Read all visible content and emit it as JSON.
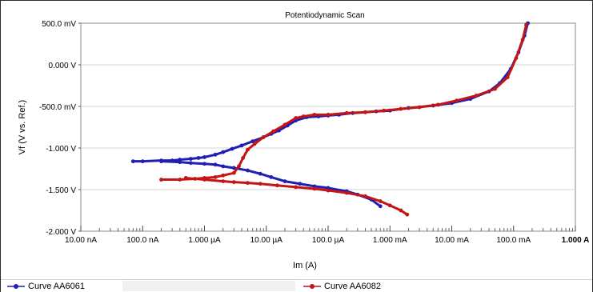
{
  "chart_data": {
    "type": "scatter",
    "title": "Potentiodynamic Scan",
    "xlabel": "Im (A)",
    "ylabel": "Vf (V vs. Ref.)",
    "xscale": "log",
    "xlim": [
      1e-08,
      1
    ],
    "ylim": [
      -2.0,
      0.5
    ],
    "x_tick_labels": [
      "10.00 nA",
      "100.0 nA",
      "1.000 µA",
      "10.00 µA",
      "100.0 µA",
      "1.000 mA",
      "10.00 mA",
      "100.0 mA",
      "1.000 A"
    ],
    "y_tick_labels": [
      "500.0 mV",
      "0.000 V",
      "-500.0 mV",
      "-1.000 V",
      "-1.500 V",
      "-2.000 V"
    ],
    "y_ticks": [
      0.5,
      0.0,
      -0.5,
      -1.0,
      -1.5,
      -2.0
    ],
    "grid": "horizontal",
    "legend": "bottom",
    "series": [
      {
        "name": "Curve  AA6061",
        "color": "#1f1fb4",
        "x": [
          7e-08,
          1e-07,
          2e-07,
          3e-07,
          4e-07,
          6e-07,
          8e-07,
          1e-06,
          1.5e-06,
          2e-06,
          2.8e-06,
          4e-06,
          6e-06,
          9e-06,
          1.2e-05,
          1.6e-05,
          2.2e-05,
          3e-05,
          4.5e-05,
          7e-05,
          0.0001,
          0.00015,
          0.00025,
          0.0004,
          0.0006,
          0.001,
          0.002,
          0.005,
          0.01,
          0.02,
          0.04,
          0.06,
          0.09,
          0.12,
          0.15,
          0.17,
          2e-07,
          4e-07,
          6e-07,
          1e-06,
          1.5e-06,
          2e-06,
          3e-06,
          5e-06,
          8e-06,
          1.2e-05,
          2e-05,
          3.5e-05,
          6e-05,
          0.0001,
          0.0002,
          0.0003,
          0.0005,
          0.0007
        ],
        "y": [
          -1.16,
          -1.16,
          -1.15,
          -1.15,
          -1.14,
          -1.13,
          -1.12,
          -1.11,
          -1.08,
          -1.05,
          -1.01,
          -0.97,
          -0.92,
          -0.87,
          -0.83,
          -0.79,
          -0.73,
          -0.67,
          -0.63,
          -0.62,
          -0.61,
          -0.6,
          -0.58,
          -0.57,
          -0.56,
          -0.55,
          -0.52,
          -0.49,
          -0.46,
          -0.41,
          -0.32,
          -0.22,
          -0.05,
          0.15,
          0.35,
          0.5,
          -1.16,
          -1.17,
          -1.18,
          -1.19,
          -1.2,
          -1.22,
          -1.24,
          -1.27,
          -1.31,
          -1.35,
          -1.4,
          -1.43,
          -1.46,
          -1.48,
          -1.52,
          -1.56,
          -1.62,
          -1.7
        ]
      },
      {
        "name": "Curve  AA6082",
        "color": "#c41414",
        "x": [
          2e-07,
          4e-07,
          7e-07,
          1e-06,
          1.5e-06,
          2e-06,
          3e-06,
          3.6e-06,
          4.2e-06,
          5e-06,
          6.5e-06,
          9e-06,
          1.3e-05,
          2e-05,
          3e-05,
          4e-05,
          6e-05,
          0.0001,
          0.0002,
          0.0004,
          0.0008,
          0.0015,
          0.003,
          0.006,
          0.012,
          0.025,
          0.05,
          0.08,
          0.11,
          0.14,
          0.16,
          5e-07,
          1e-06,
          2e-06,
          3e-06,
          5e-06,
          8e-06,
          1.5e-05,
          3e-05,
          6e-05,
          0.0001,
          0.0002,
          0.0004,
          0.0007,
          0.001,
          0.0015,
          0.0019
        ],
        "y": [
          -1.38,
          -1.38,
          -1.37,
          -1.36,
          -1.35,
          -1.33,
          -1.3,
          -1.22,
          -1.12,
          -1.02,
          -0.95,
          -0.87,
          -0.8,
          -0.72,
          -0.64,
          -0.62,
          -0.6,
          -0.6,
          -0.58,
          -0.57,
          -0.55,
          -0.53,
          -0.51,
          -0.48,
          -0.43,
          -0.37,
          -0.29,
          -0.15,
          0.08,
          0.3,
          0.48,
          -1.36,
          -1.38,
          -1.4,
          -1.41,
          -1.42,
          -1.43,
          -1.45,
          -1.47,
          -1.49,
          -1.51,
          -1.54,
          -1.58,
          -1.64,
          -1.69,
          -1.75,
          -1.8
        ]
      }
    ]
  }
}
